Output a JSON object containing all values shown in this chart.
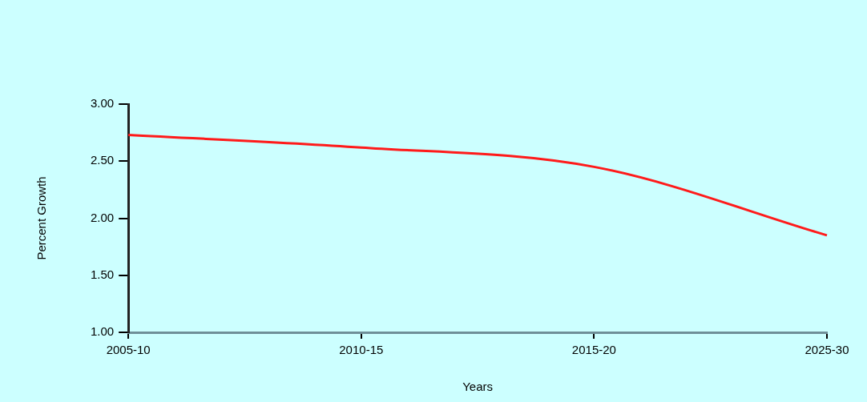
{
  "chart_data": {
    "type": "line",
    "xlabel": "Years",
    "ylabel": "Percent Growth",
    "categories": [
      "2005-10",
      "2010-15",
      "2015-20",
      "2025-30"
    ],
    "series": [
      {
        "color": "#ff1a1a",
        "values": [
          2.73,
          2.62,
          2.45,
          1.85
        ]
      }
    ],
    "ylim": [
      1,
      3
    ],
    "yticks": [
      {
        "value": 1,
        "label": "1.00"
      },
      {
        "value": 1.5,
        "label": "1.50"
      },
      {
        "value": 2,
        "label": "2.00"
      },
      {
        "value": 2.5,
        "label": "2.50"
      },
      {
        "value": 3,
        "label": "3.00"
      }
    ],
    "grid": false,
    "legend": false,
    "marker": "none",
    "line_style": "solid"
  }
}
